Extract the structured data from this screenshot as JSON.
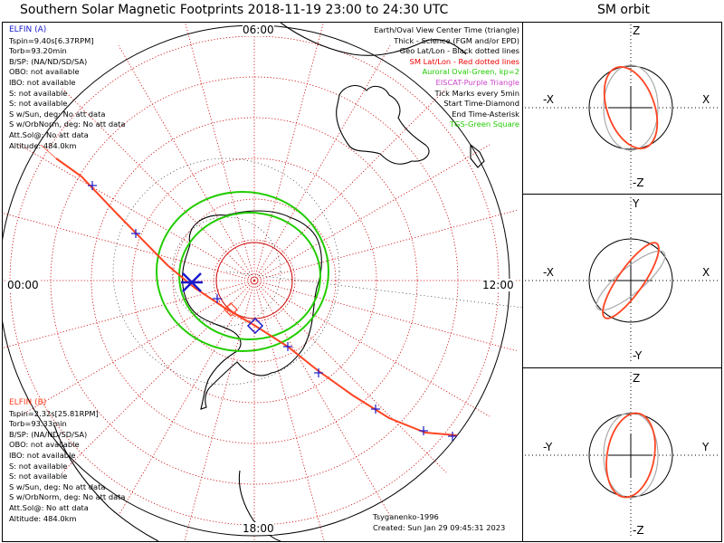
{
  "main_title": "Southern Solar Magnetic Footprints 2018-11-19 23:00 to 24:30 UTC",
  "orbit_title": "SM orbit",
  "time_labels": {
    "top": "06:00",
    "left": "00:00",
    "right": "12:00",
    "bottom": "18:00"
  },
  "elfin_a": {
    "name": "ELFIN (A)",
    "color": "#1a1acc",
    "lines": [
      "Tspin=9.40s[6.37RPM]",
      "Torb=93.20min",
      "B/SP: (NA/ND/SD/SA)",
      "OBO: not available",
      "IBO: not available",
      "S: not available",
      "S: not available",
      "S w/Sun, deg: No att data",
      "S w/OrbNorm, deg: No att data",
      "Att.Sol@: No att data",
      "Altitude: 484.0km"
    ]
  },
  "elfin_b": {
    "name": "ELFIN (B)",
    "color": "#ff4422",
    "lines": [
      "Tspin=2.32s[25.81RPM]",
      "Torb=93.33min",
      "B/SP: (NA/ND/SD/SA)",
      "OBO: not available",
      "IBO: not available",
      "S: not available",
      "S: not available",
      "S w/Sun, deg: No att data",
      "S w/OrbNorm, deg: No att data",
      "Att.Sol@: No att data",
      "Altitude: 484.0km"
    ]
  },
  "legend": [
    {
      "text": "Earth/Oval View Center Time (triangle)",
      "color": "#000000"
    },
    {
      "text": "Thick - Science (FGM and/or EPD)",
      "color": "#000000"
    },
    {
      "text": "Geo Lat/Lon - Black dotted lines",
      "color": "#000000"
    },
    {
      "text": "SM Lat/Lon - Red dotted lines",
      "color": "#ee0000"
    },
    {
      "text": "Auroral Oval-Green, kp=2",
      "color": "#22cc00"
    },
    {
      "text": "EISCAT-Purple Triangle",
      "color": "#cc44cc"
    },
    {
      "text": "Tick Marks every 5min",
      "color": "#000000"
    },
    {
      "text": "Start Time-Diamond",
      "color": "#000000"
    },
    {
      "text": "End Time-Asterisk",
      "color": "#000000"
    },
    {
      "text": "TGS-Green Square",
      "color": "#22cc00"
    }
  ],
  "credits": {
    "author": "Tsyganenko-1996",
    "created": "Created: Sun Jan 29 09:45:31 2023"
  },
  "orbit_panels": [
    {
      "top": "Z",
      "bottom": "-Z",
      "left": "-X",
      "right": "X"
    },
    {
      "top": "Y",
      "bottom": "-Y",
      "left": "-X",
      "right": "X"
    },
    {
      "top": "Z",
      "bottom": "-Z",
      "left": "-Y",
      "right": "Y"
    }
  ],
  "colors": {
    "elfin_a": "#1a1acc",
    "elfin_b": "#ff4422",
    "oval": "#22cc00",
    "grid_sm": "#cc0000",
    "coast": "#000000"
  },
  "chart_data": {
    "type": "scatter",
    "projection": "south polar stereographic, SM coordinates",
    "sm_grid_latitudes": [
      -80,
      -70,
      -60,
      -50,
      -40,
      -30,
      -20
    ],
    "sm_grid_longitude_step_deg": 15,
    "auroral_oval_kp": 2,
    "tick_interval_min": 5,
    "series": [
      {
        "name": "ELFIN (A)",
        "marker": "tick marks"
      },
      {
        "name": "ELFIN (B)",
        "marker": "tick marks"
      }
    ]
  }
}
